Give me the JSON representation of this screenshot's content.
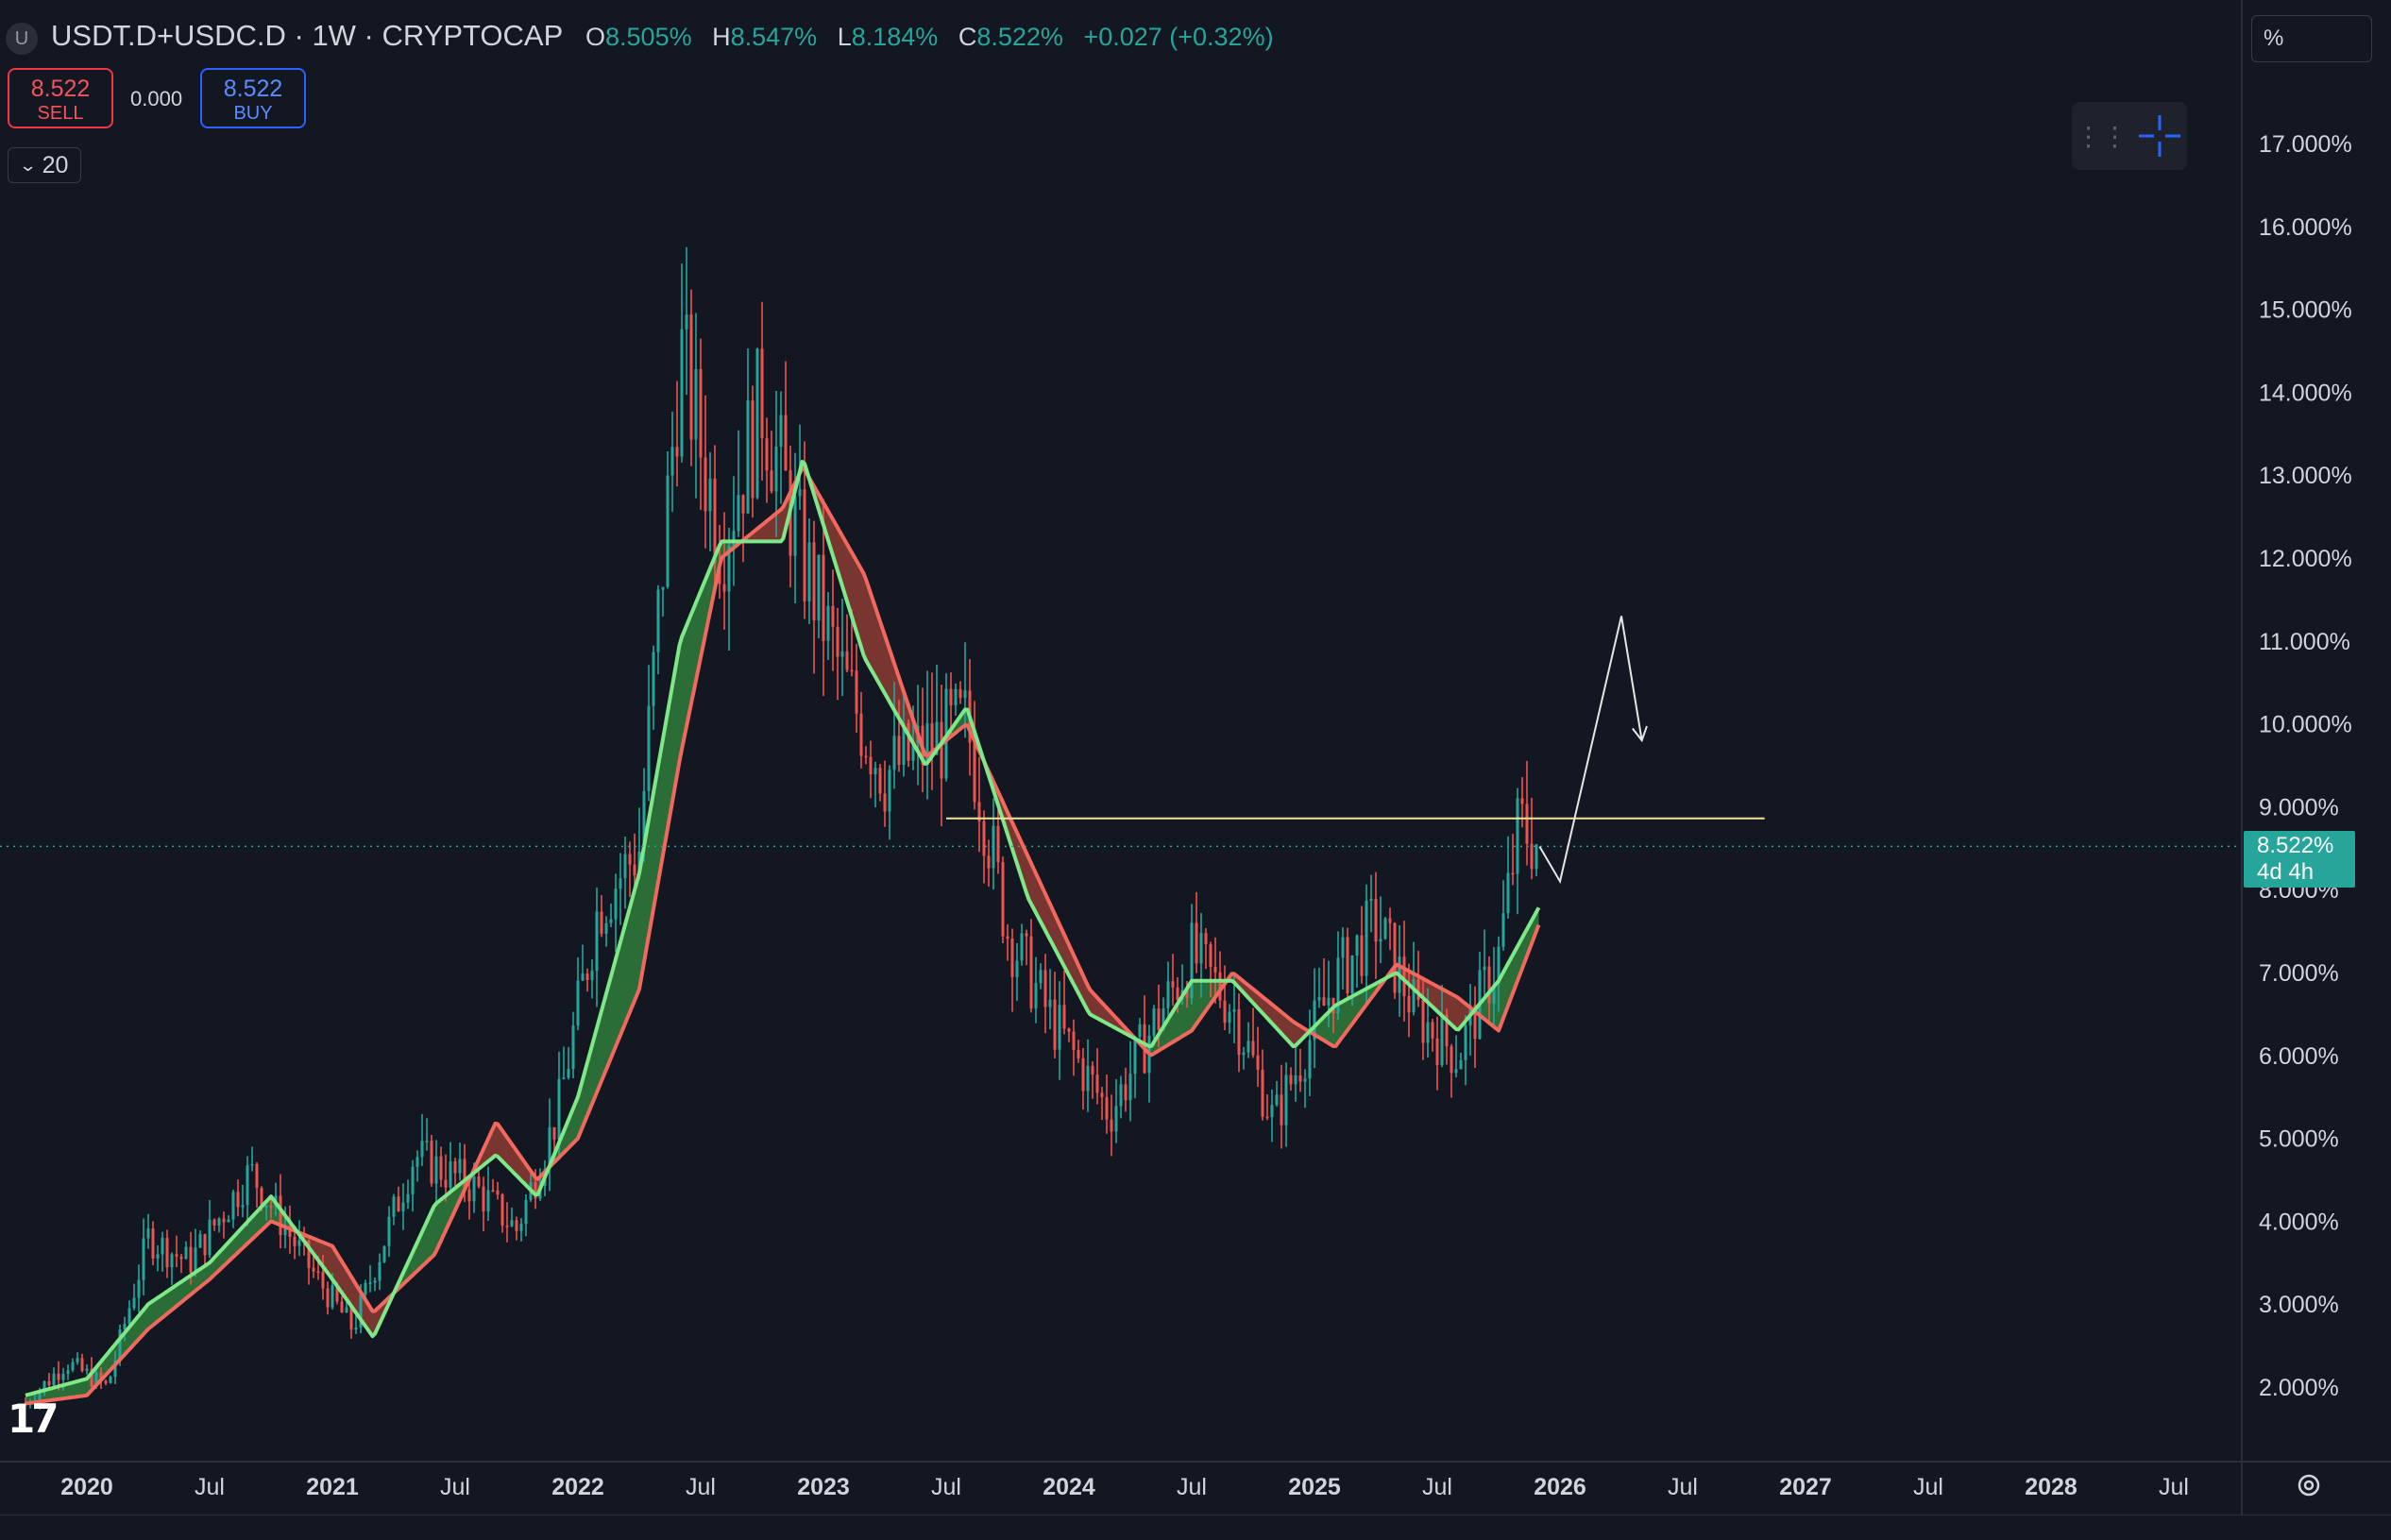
{
  "header": {
    "symbol_icon": "U",
    "title": "USDT.D+USDC.D · 1W · CRYPTOCAP",
    "ohlc": {
      "o_label": "O",
      "o_value": "8.505%",
      "h_label": "H",
      "h_value": "8.547%",
      "l_label": "L",
      "l_value": "8.184%",
      "c_label": "C",
      "c_value": "8.522%",
      "change": "+0.027 (+0.32%)"
    }
  },
  "trade": {
    "sell_price": "8.522",
    "sell_label": "SELL",
    "spread": "0.000",
    "buy_price": "8.522",
    "buy_label": "BUY"
  },
  "collapse_count": "20",
  "axis_mode": "%",
  "last_price": {
    "value": "8.522%",
    "countdown": "4d 4h"
  },
  "colors": {
    "background": "#131722",
    "up": "#26a69a",
    "down": "#ef5350",
    "ma_fast": "#7ee787",
    "ma_slow": "#f2685e",
    "ribbon_bull": "#2f7d3a",
    "ribbon_bear": "#8c3b32",
    "resistance": "#f6e39a",
    "projection": "#e6e6e6",
    "axis_text": "#d1d4dc"
  },
  "icons": {
    "chevron": "chevron-down-icon",
    "drag": "drag-handle-icon",
    "crosshair": "crosshair-icon",
    "settings": "gear-icon",
    "logo": "tradingview-logo"
  },
  "chart_data": {
    "type": "candlestick",
    "timeframe": "1W",
    "ylim": [
      1.0,
      18.0
    ],
    "y_scale": "percent",
    "yticks": [
      "2.000%",
      "3.000%",
      "4.000%",
      "5.000%",
      "6.000%",
      "7.000%",
      "8.000%",
      "9.000%",
      "10.000%",
      "11.000%",
      "12.000%",
      "13.000%",
      "14.000%",
      "15.000%",
      "16.000%",
      "17.000%"
    ],
    "xticks": [
      "2020",
      "Jul",
      "2021",
      "Jul",
      "2022",
      "Jul",
      "2023",
      "Jul",
      "2024",
      "Jul",
      "2025",
      "Jul",
      "2026",
      "Jul",
      "2027",
      "Jul",
      "2028",
      "Jul"
    ],
    "xlim": [
      "2019-10",
      "2028-09"
    ],
    "price_path": [
      [
        "2019-10",
        1.8
      ],
      [
        "2019-12",
        2.3
      ],
      [
        "2020-02",
        2.0
      ],
      [
        "2020-04",
        3.8
      ],
      [
        "2020-06",
        3.5
      ],
      [
        "2020-09",
        4.6
      ],
      [
        "2020-12",
        3.4
      ],
      [
        "2021-02",
        2.7
      ],
      [
        "2021-05",
        4.8
      ],
      [
        "2021-08",
        4.4
      ],
      [
        "2021-10",
        3.9
      ],
      [
        "2021-12",
        5.3
      ],
      [
        "2022-02",
        7.8
      ],
      [
        "2022-04",
        8.5
      ],
      [
        "2022-06",
        14.5
      ],
      [
        "2022-08",
        12.2
      ],
      [
        "2022-10",
        13.9
      ],
      [
        "2022-12",
        12.0
      ],
      [
        "2023-02",
        10.5
      ],
      [
        "2023-04",
        9.4
      ],
      [
        "2023-06",
        9.7
      ],
      [
        "2023-08",
        10.0
      ],
      [
        "2023-10",
        7.5
      ],
      [
        "2023-12",
        6.5
      ],
      [
        "2024-03",
        5.3
      ],
      [
        "2024-05",
        6.3
      ],
      [
        "2024-07",
        7.2
      ],
      [
        "2024-09",
        6.6
      ],
      [
        "2024-11",
        5.2
      ],
      [
        "2025-02",
        6.9
      ],
      [
        "2025-04",
        7.6
      ],
      [
        "2025-06",
        6.5
      ],
      [
        "2025-08",
        6.0
      ],
      [
        "2025-10",
        7.2
      ],
      [
        "2025-11",
        8.8
      ],
      [
        "2025-12",
        8.52
      ]
    ],
    "series": [
      {
        "name": "",
        "role": "fast_ma",
        "points": [
          [
            "2019-10",
            1.9
          ],
          [
            "2020-01",
            2.1
          ],
          [
            "2020-04",
            3.0
          ],
          [
            "2020-07",
            3.5
          ],
          [
            "2020-10",
            4.3
          ],
          [
            "2021-01",
            3.3
          ],
          [
            "2021-03",
            2.6
          ],
          [
            "2021-06",
            4.2
          ],
          [
            "2021-09",
            4.8
          ],
          [
            "2021-11",
            4.3
          ],
          [
            "2022-01",
            5.5
          ],
          [
            "2022-04",
            8.2
          ],
          [
            "2022-06",
            11.0
          ],
          [
            "2022-08",
            12.2
          ],
          [
            "2022-11",
            12.2
          ],
          [
            "2022-12",
            13.2
          ],
          [
            "2023-03",
            10.8
          ],
          [
            "2023-06",
            9.5
          ],
          [
            "2023-08",
            10.2
          ],
          [
            "2023-11",
            7.9
          ],
          [
            "2024-02",
            6.5
          ],
          [
            "2024-05",
            6.1
          ],
          [
            "2024-07",
            6.9
          ],
          [
            "2024-09",
            6.9
          ],
          [
            "2024-12",
            6.1
          ],
          [
            "2025-02",
            6.6
          ],
          [
            "2025-05",
            7.0
          ],
          [
            "2025-08",
            6.3
          ],
          [
            "2025-10",
            6.9
          ],
          [
            "2025-12",
            7.8
          ]
        ]
      },
      {
        "name": "",
        "role": "slow_ma",
        "points": [
          [
            "2019-10",
            1.8
          ],
          [
            "2020-01",
            1.9
          ],
          [
            "2020-04",
            2.7
          ],
          [
            "2020-07",
            3.3
          ],
          [
            "2020-10",
            4.0
          ],
          [
            "2021-01",
            3.7
          ],
          [
            "2021-03",
            2.9
          ],
          [
            "2021-06",
            3.6
          ],
          [
            "2021-09",
            5.2
          ],
          [
            "2021-11",
            4.5
          ],
          [
            "2022-01",
            5.0
          ],
          [
            "2022-04",
            6.8
          ],
          [
            "2022-06",
            9.6
          ],
          [
            "2022-08",
            12.0
          ],
          [
            "2022-11",
            12.6
          ],
          [
            "2022-12",
            13.1
          ],
          [
            "2023-03",
            11.8
          ],
          [
            "2023-06",
            9.6
          ],
          [
            "2023-08",
            10.0
          ],
          [
            "2023-11",
            8.4
          ],
          [
            "2024-02",
            6.8
          ],
          [
            "2024-05",
            6.0
          ],
          [
            "2024-07",
            6.3
          ],
          [
            "2024-09",
            7.0
          ],
          [
            "2024-12",
            6.4
          ],
          [
            "2025-02",
            6.1
          ],
          [
            "2025-05",
            7.1
          ],
          [
            "2025-08",
            6.7
          ],
          [
            "2025-10",
            6.3
          ],
          [
            "2025-12",
            7.6
          ]
        ]
      }
    ],
    "annotations": {
      "resistance": {
        "y": 8.86,
        "from": "2023-07",
        "to": "2026-11"
      },
      "projection": [
        [
          "2025-12",
          8.52
        ],
        [
          "2026-01",
          8.1
        ],
        [
          "2026-04",
          11.3
        ],
        [
          "2026-05",
          9.8
        ]
      ],
      "last_price_line": 8.522
    }
  }
}
